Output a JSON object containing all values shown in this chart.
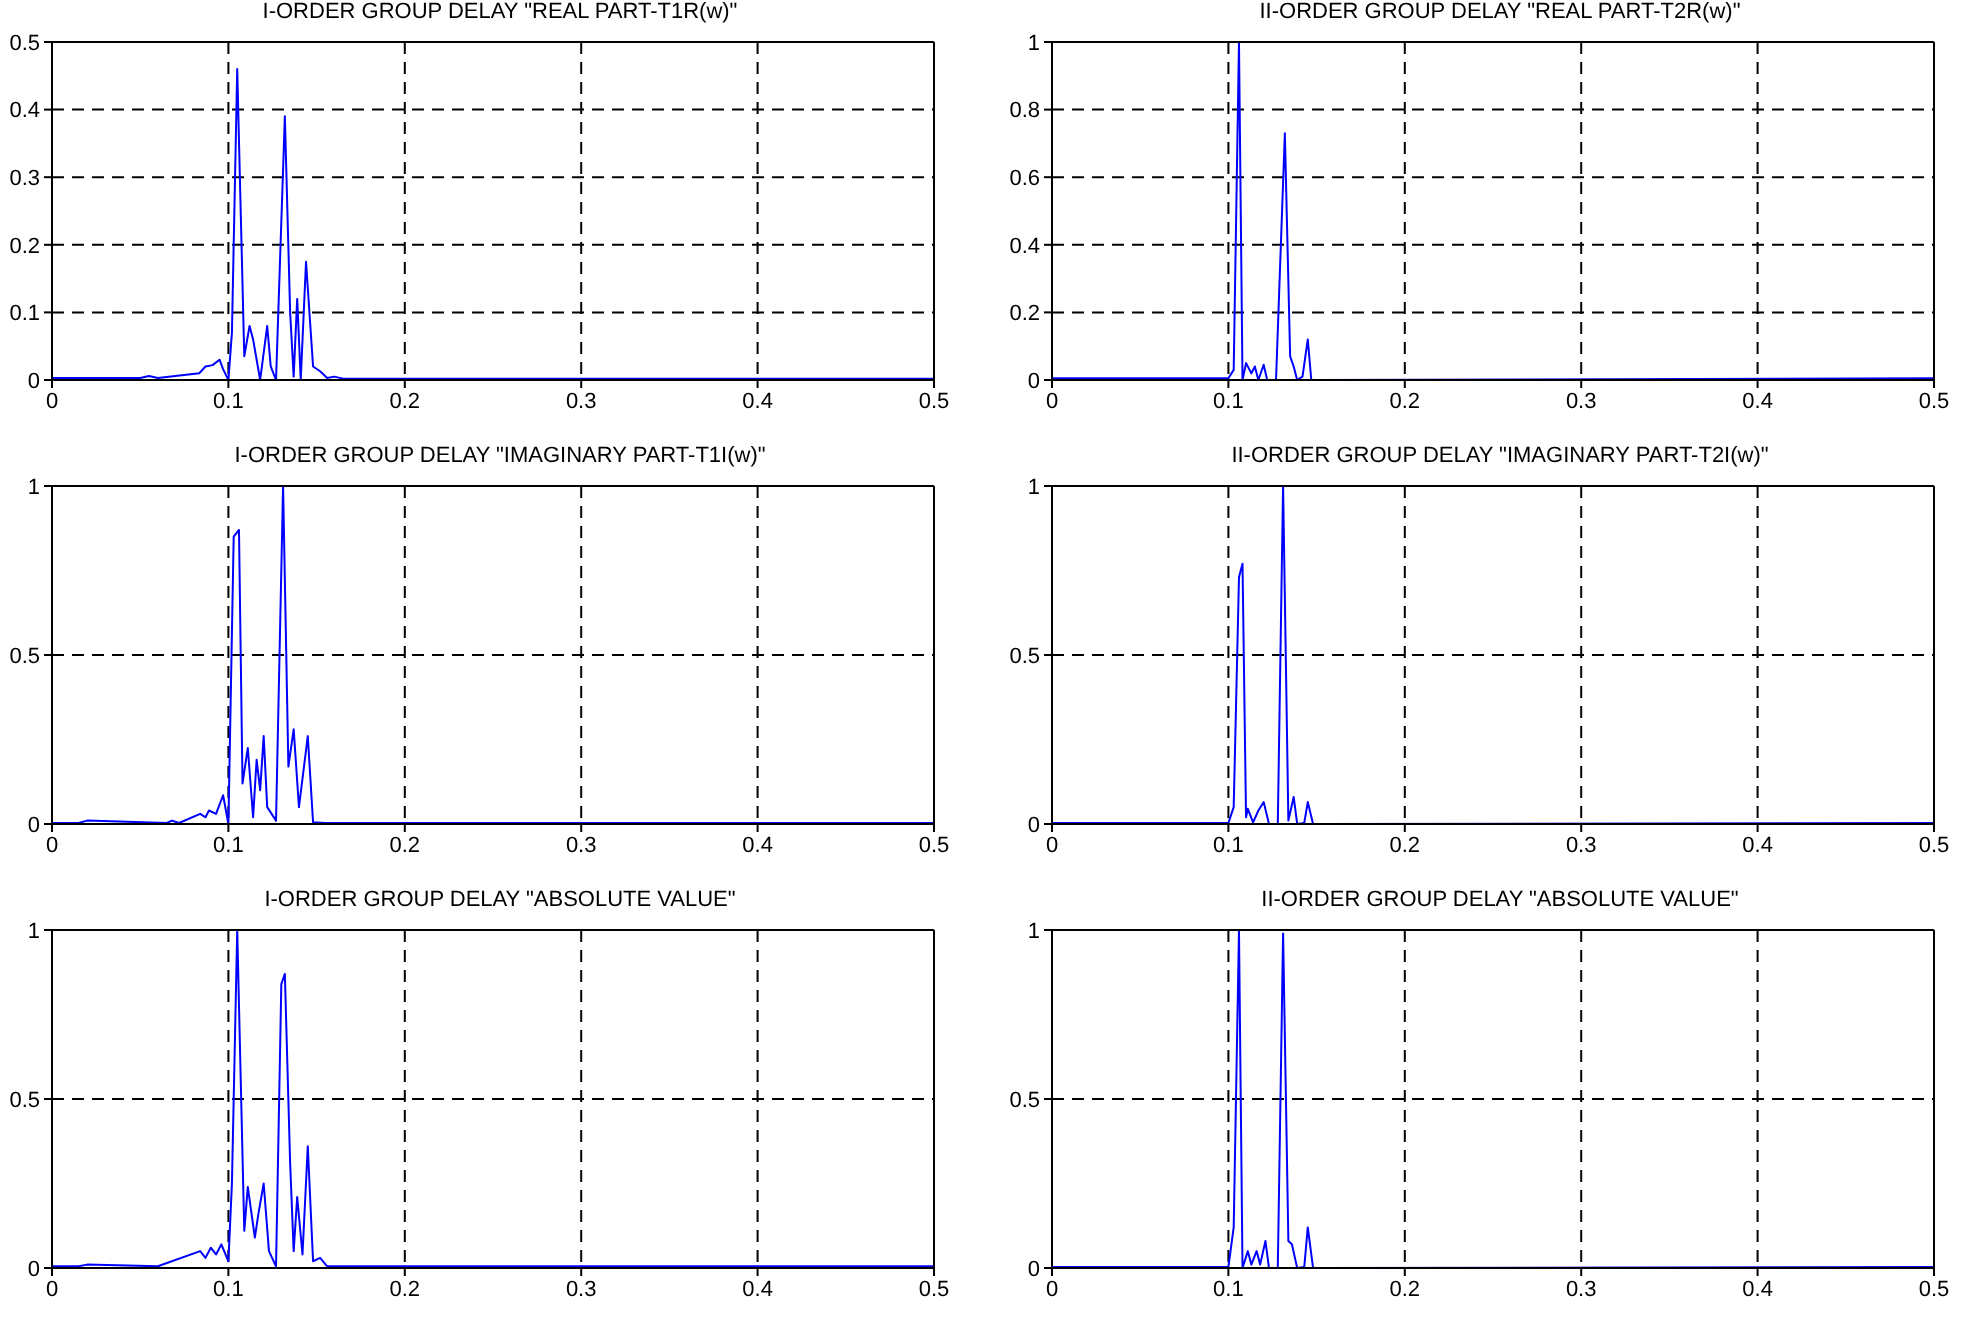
{
  "chart_data": [
    {
      "type": "line",
      "title": "I-ORDER GROUP DELAY  \"REAL PART-T1R(w)\"",
      "xlim": [
        0,
        0.5
      ],
      "ylim": [
        0,
        0.5
      ],
      "xticks": [
        0,
        0.1,
        0.2,
        0.3,
        0.4,
        0.5
      ],
      "yticks": [
        0,
        0.1,
        0.2,
        0.3,
        0.4,
        0.5
      ],
      "grid": true,
      "x": [
        0,
        0.05,
        0.055,
        0.06,
        0.0835,
        0.087,
        0.091,
        0.095,
        0.097,
        0.1,
        0.102,
        0.105,
        0.109,
        0.112,
        0.114,
        0.118,
        0.122,
        0.124,
        0.127,
        0.132,
        0.135,
        0.137,
        0.139,
        0.141,
        0.144,
        0.148,
        0.152,
        0.156,
        0.16,
        0.165,
        0.5
      ],
      "series": [
        {
          "color": "#0000ff",
          "values": [
            0.003,
            0.003,
            0.006,
            0.003,
            0.01,
            0.02,
            0.022,
            0.03,
            0.016,
            0,
            0.07,
            0.46,
            0.035,
            0.08,
            0.06,
            0,
            0.08,
            0.02,
            0,
            0.39,
            0.1,
            0.005,
            0.12,
            0,
            0.175,
            0.02,
            0.013,
            0.003,
            0.005,
            0.002,
            0.002
          ]
        }
      ]
    },
    {
      "type": "line",
      "title": "II-ORDER GROUP DELAY  \"REAL PART-T2R(w)\"",
      "xlim": [
        0,
        0.5
      ],
      "ylim": [
        0,
        1
      ],
      "xticks": [
        0,
        0.1,
        0.2,
        0.3,
        0.4,
        0.5
      ],
      "yticks": [
        0,
        0.2,
        0.4,
        0.6,
        0.8,
        1
      ],
      "grid": true,
      "x": [
        0,
        0.1,
        0.103,
        0.106,
        0.108,
        0.11,
        0.113,
        0.115,
        0.117,
        0.12,
        0.122,
        0.127,
        0.132,
        0.135,
        0.137,
        0.139,
        0.142,
        0.145,
        0.147,
        0.5
      ],
      "series": [
        {
          "color": "#0000ff",
          "values": [
            0.005,
            0.005,
            0.03,
            1,
            0,
            0.05,
            0.02,
            0.04,
            0,
            0.045,
            0,
            0,
            0.73,
            0.07,
            0.04,
            0,
            0.01,
            0.12,
            0,
            0.005
          ]
        }
      ]
    },
    {
      "type": "line",
      "title": "I-ORDER GROUP DELAY  \"IMAGINARY PART-T1I(w)\"",
      "xlim": [
        0,
        0.5
      ],
      "ylim": [
        0,
        1
      ],
      "xticks": [
        0,
        0.1,
        0.2,
        0.3,
        0.4,
        0.5
      ],
      "yticks": [
        0,
        0.5,
        1
      ],
      "grid": true,
      "x": [
        0,
        0.015,
        0.02,
        0.065,
        0.068,
        0.072,
        0.084,
        0.087,
        0.089,
        0.093,
        0.097,
        0.1,
        0.103,
        0.106,
        0.108,
        0.111,
        0.114,
        0.116,
        0.118,
        0.12,
        0.122,
        0.127,
        0.131,
        0.134,
        0.137,
        0.14,
        0.145,
        0.148,
        0.155,
        0.5
      ],
      "series": [
        {
          "color": "#0000ff",
          "values": [
            0.003,
            0.003,
            0.01,
            0.003,
            0.01,
            0.003,
            0.03,
            0.02,
            0.04,
            0.03,
            0.085,
            0,
            0.85,
            0.87,
            0.12,
            0.225,
            0.02,
            0.19,
            0.1,
            0.26,
            0.05,
            0.01,
            1,
            0.17,
            0.28,
            0.05,
            0.26,
            0.005,
            0.003,
            0.003
          ]
        }
      ]
    },
    {
      "type": "line",
      "title": "II-ORDER GROUP DELAY  \"IMAGINARY PART-T2I(w)\"",
      "xlim": [
        0,
        0.5
      ],
      "ylim": [
        0,
        1
      ],
      "xticks": [
        0,
        0.1,
        0.2,
        0.3,
        0.4,
        0.5
      ],
      "yticks": [
        0,
        0.5,
        1
      ],
      "grid": true,
      "x": [
        0,
        0.1,
        0.103,
        0.106,
        0.108,
        0.11,
        0.111,
        0.114,
        0.117,
        0.12,
        0.123,
        0.128,
        0.131,
        0.134,
        0.137,
        0.139,
        0.143,
        0.145,
        0.148,
        0.5
      ],
      "series": [
        {
          "color": "#0000ff",
          "values": [
            0.003,
            0.003,
            0.05,
            0.73,
            0.77,
            0.02,
            0.045,
            0.005,
            0.04,
            0.065,
            0,
            0,
            1,
            0.01,
            0.08,
            0,
            0.003,
            0.065,
            0,
            0.003
          ]
        }
      ]
    },
    {
      "type": "line",
      "title": "I-ORDER GROUP DELAY  \"ABSOLUTE VALUE\"",
      "xlim": [
        0,
        0.5
      ],
      "ylim": [
        0,
        1
      ],
      "xticks": [
        0,
        0.1,
        0.2,
        0.3,
        0.4,
        0.5
      ],
      "yticks": [
        0,
        0.5,
        1
      ],
      "grid": true,
      "x": [
        0,
        0.015,
        0.02,
        0.06,
        0.084,
        0.087,
        0.09,
        0.093,
        0.096,
        0.1,
        0.102,
        0.105,
        0.109,
        0.111,
        0.115,
        0.117,
        0.12,
        0.123,
        0.127,
        0.13,
        0.132,
        0.135,
        0.137,
        0.139,
        0.142,
        0.145,
        0.148,
        0.152,
        0.156,
        0.5
      ],
      "series": [
        {
          "color": "#0000ff",
          "values": [
            0.005,
            0.005,
            0.01,
            0.005,
            0.05,
            0.03,
            0.06,
            0.04,
            0.07,
            0.02,
            0.25,
            1,
            0.11,
            0.24,
            0.09,
            0.16,
            0.25,
            0.05,
            0.005,
            0.84,
            0.87,
            0.31,
            0.05,
            0.21,
            0.04,
            0.36,
            0.02,
            0.03,
            0.005,
            0.005
          ]
        }
      ]
    },
    {
      "type": "line",
      "title": "II-ORDER GROUP DELAY  \"ABSOLUTE VALUE\"",
      "xlim": [
        0,
        0.5
      ],
      "ylim": [
        0,
        1
      ],
      "xticks": [
        0,
        0.1,
        0.2,
        0.3,
        0.4,
        0.5
      ],
      "yticks": [
        0,
        0.5,
        1
      ],
      "grid": true,
      "x": [
        0,
        0.1,
        0.103,
        0.106,
        0.108,
        0.111,
        0.113,
        0.116,
        0.118,
        0.121,
        0.123,
        0.128,
        0.131,
        0.134,
        0.136,
        0.139,
        0.143,
        0.145,
        0.148,
        0.5
      ],
      "series": [
        {
          "color": "#0000ff",
          "values": [
            0.003,
            0.003,
            0.12,
            1,
            0,
            0.05,
            0.01,
            0.05,
            0.01,
            0.08,
            0,
            0,
            0.99,
            0.08,
            0.07,
            0,
            0.003,
            0.12,
            0,
            0.003
          ]
        }
      ]
    }
  ]
}
